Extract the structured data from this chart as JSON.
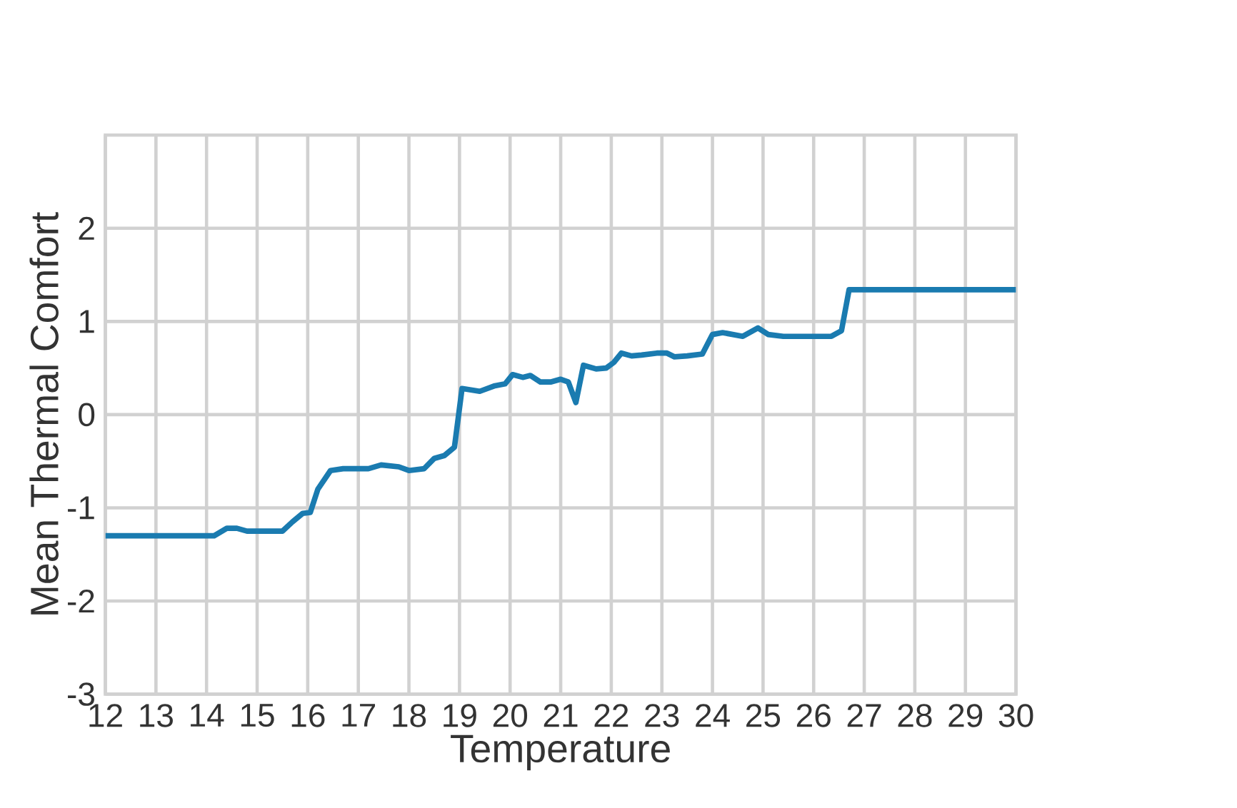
{
  "chart_data": {
    "type": "line",
    "xlabel": "Temperature",
    "ylabel": "Mean Thermal Comfort",
    "xlim": [
      12,
      30
    ],
    "xticks": [
      12,
      13,
      14,
      15,
      16,
      17,
      18,
      19,
      20,
      21,
      22,
      23,
      24,
      25,
      26,
      27,
      28,
      29,
      30
    ],
    "ylim": [
      -3,
      3
    ],
    "yticks": [
      -3,
      -2,
      -1,
      0,
      1,
      2
    ],
    "grid": true,
    "series": [
      {
        "color": "#1a7bb0",
        "x": [
          12,
          14.15,
          14.4,
          14.6,
          14.8,
          15.5,
          15.7,
          15.9,
          16.05,
          16.2,
          16.45,
          16.7,
          17.2,
          17.45,
          17.8,
          18.0,
          18.3,
          18.5,
          18.7,
          18.9,
          19.05,
          19.4,
          19.7,
          19.9,
          20.05,
          20.25,
          20.4,
          20.6,
          20.8,
          21.0,
          21.15,
          21.3,
          21.45,
          21.7,
          21.9,
          22.05,
          22.2,
          22.4,
          22.6,
          22.9,
          23.1,
          23.25,
          23.5,
          23.8,
          24.0,
          24.2,
          24.6,
          24.9,
          25.1,
          25.4,
          26.35,
          26.55,
          26.7,
          30
        ],
        "values": [
          -1.3,
          -1.3,
          -1.22,
          -1.22,
          -1.25,
          -1.25,
          -1.15,
          -1.06,
          -1.05,
          -0.8,
          -0.6,
          -0.58,
          -0.58,
          -0.54,
          -0.56,
          -0.6,
          -0.58,
          -0.47,
          -0.44,
          -0.35,
          0.28,
          0.25,
          0.31,
          0.33,
          0.43,
          0.4,
          0.42,
          0.35,
          0.35,
          0.38,
          0.35,
          0.13,
          0.53,
          0.49,
          0.5,
          0.56,
          0.66,
          0.63,
          0.64,
          0.66,
          0.66,
          0.62,
          0.63,
          0.65,
          0.86,
          0.88,
          0.84,
          0.93,
          0.86,
          0.84,
          0.84,
          0.9,
          1.34,
          1.34
        ]
      }
    ]
  }
}
